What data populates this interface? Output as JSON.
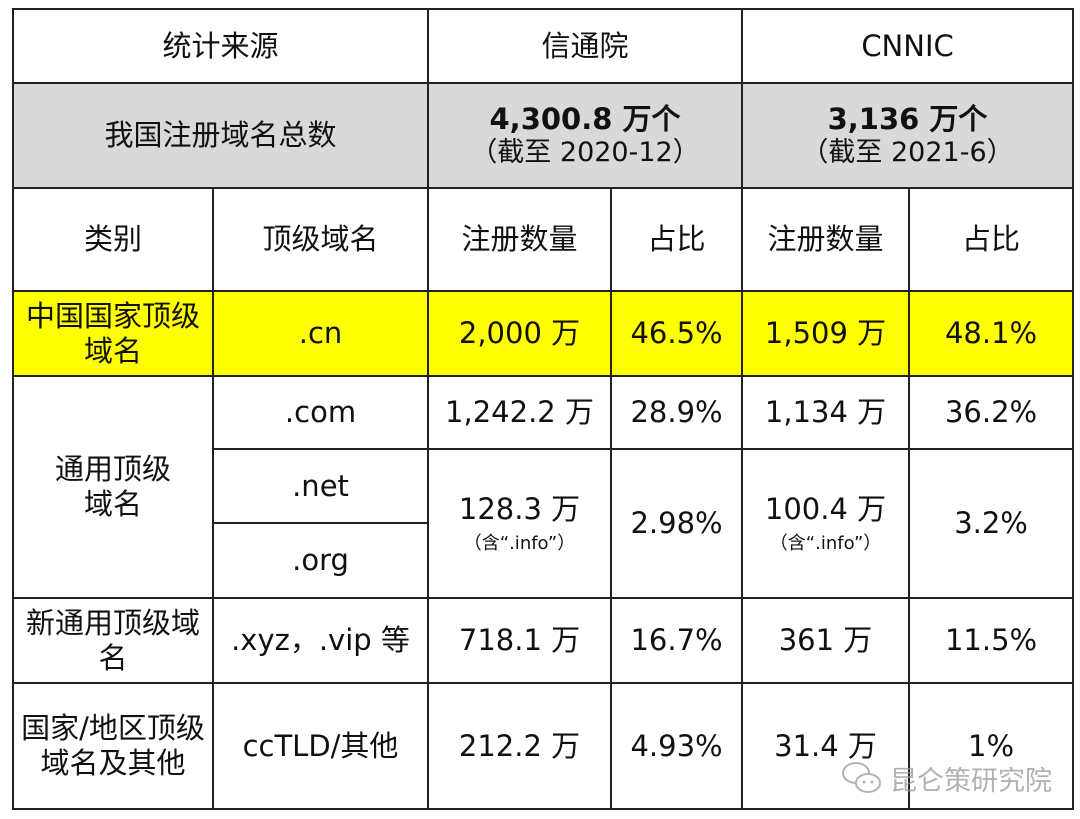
{
  "header": {
    "source_label": "统计来源",
    "caict": "信通院",
    "cnnic": "CNNIC"
  },
  "total": {
    "label": "我国注册域名总数",
    "caict_value": "4,300.8 万个",
    "caict_date": "（截至 2020-12）",
    "cnnic_value": "3,136 万个",
    "cnnic_date": "（截至 2021-6）"
  },
  "columns": {
    "category": "类别",
    "tld": "顶级域名",
    "count": "注册数量",
    "share": "占比",
    "count2": "注册数量",
    "share2": "占比"
  },
  "rows": [
    {
      "category": "中国国家顶级域名",
      "tld": ".cn",
      "caict_count": "2,000 万",
      "caict_share": "46.5%",
      "cnnic_count": "1,509 万",
      "cnnic_share": "48.1%"
    },
    {
      "category": "通用顶级域名",
      "tld": ".com",
      "caict_count": "1,242.2 万",
      "caict_share": "28.9%",
      "cnnic_count": "1,134 万",
      "cnnic_share": "36.2%"
    },
    {
      "tld": ".net",
      "caict_count": "128.3 万",
      "caict_note": "（含“.info”）",
      "caict_share": "2.98%",
      "cnnic_count": "100.4 万",
      "cnnic_note": "（含“.info”）",
      "cnnic_share": "3.2%"
    },
    {
      "tld": ".org"
    },
    {
      "category": "新通用顶级域名",
      "tld": ".xyz，.vip 等",
      "caict_count": "718.1 万",
      "caict_share": "16.7%",
      "cnnic_count": "361 万",
      "cnnic_share": "11.5%"
    },
    {
      "category": "国家/地区顶级域名及其他",
      "tld": "ccTLD/其他",
      "caict_count": "212.2 万",
      "caict_share": "4.93%",
      "cnnic_count": "31.4 万",
      "cnnic_share": "1%"
    }
  ],
  "highlight_color": "#ffff00",
  "header_gray": "#d9d9d9",
  "watermark": {
    "icon": "wechat-icon",
    "text": "昆仑策研究院"
  }
}
